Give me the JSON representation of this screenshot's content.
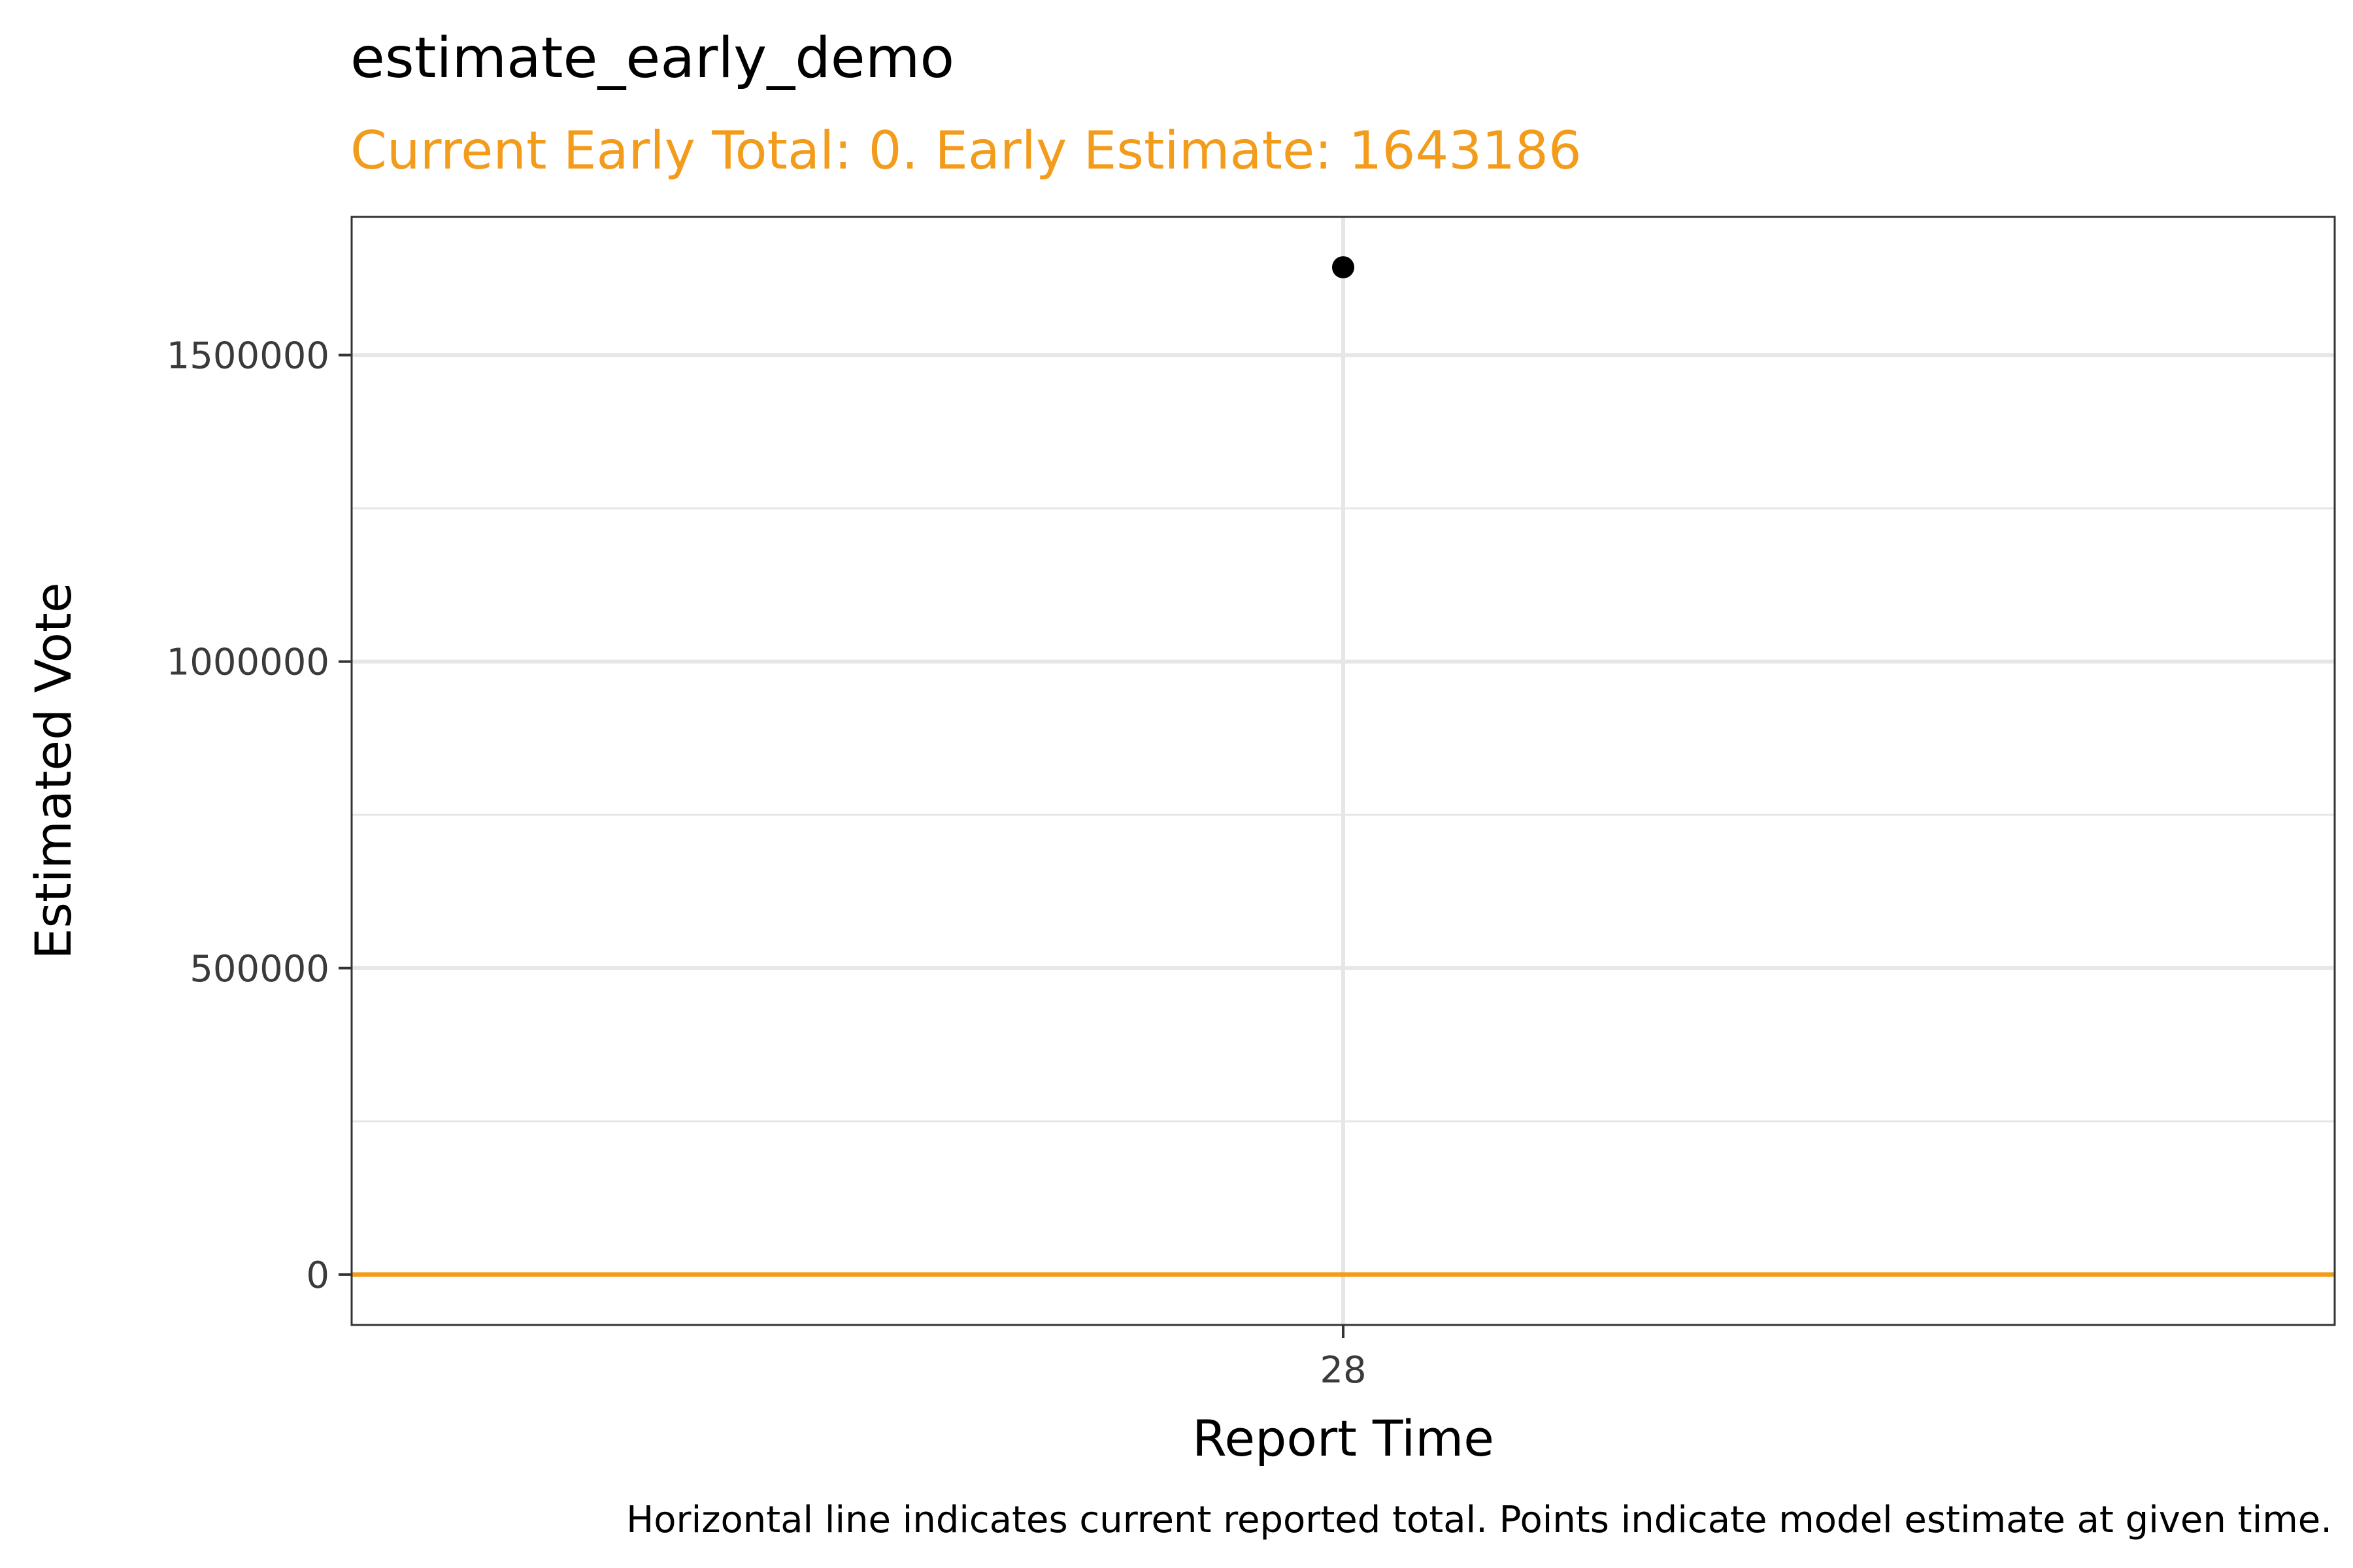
{
  "chart_data": {
    "type": "scatter",
    "title": "estimate_early_demo",
    "subtitle": "Current Early Total: 0. Early Estimate: 1643186",
    "caption": "Horizontal line indicates current reported total. Points indicate model estimate at given time.",
    "xlabel": "Report Time",
    "ylabel": "Estimated Vote",
    "x_ticks": [
      "28"
    ],
    "y_ticks": [
      0,
      500000,
      1000000,
      1500000
    ],
    "y_tick_labels": [
      "0",
      "500000",
      "1000000",
      "1500000"
    ],
    "ylim": [
      -82159,
      1725345
    ],
    "grid": true,
    "legend": "none",
    "series": [
      {
        "points": [
          {
            "x": "28",
            "y": 1643186
          }
        ],
        "color": "#000000"
      }
    ],
    "reference_line": {
      "type": "horizontal",
      "y": 0,
      "color": "#f39c1c"
    },
    "colors": {
      "subtitle": "#f39c1c",
      "grid": "#e6e6e6",
      "panel_border": "#333333"
    }
  }
}
